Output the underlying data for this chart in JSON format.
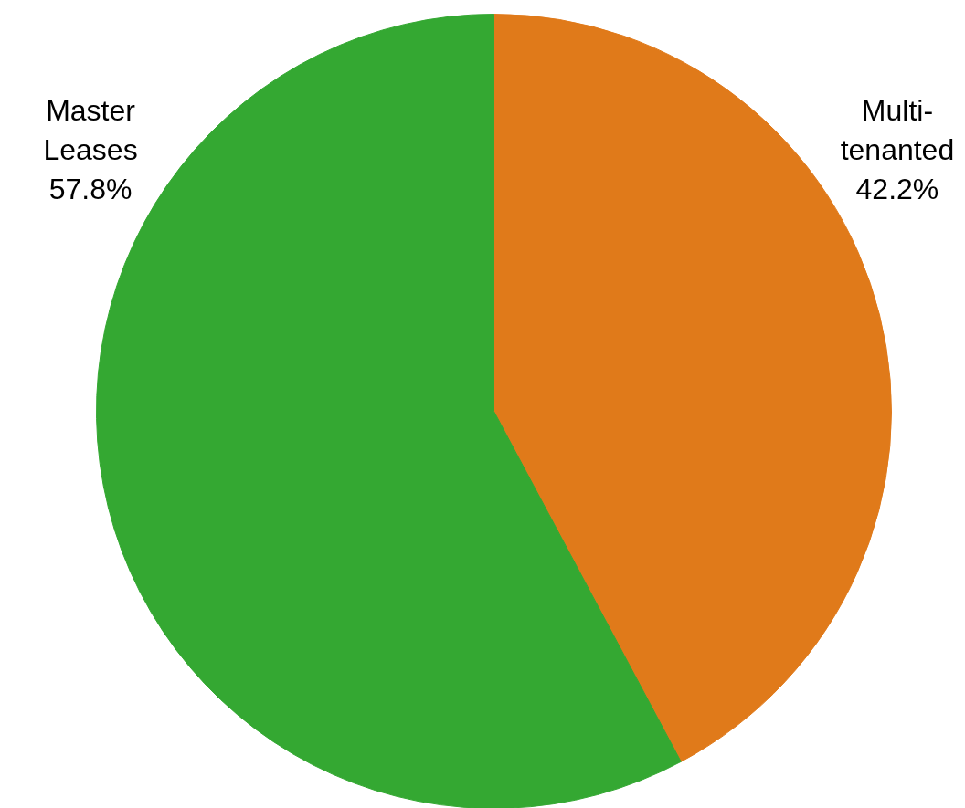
{
  "chart_data": {
    "type": "pie",
    "categories": [
      "Multi-tenanted",
      "Master Leases"
    ],
    "values": [
      42.2,
      57.8
    ],
    "value_labels": [
      "42.2%",
      "57.8%"
    ],
    "colors": [
      "#e07a1a",
      "#34a832"
    ]
  }
}
